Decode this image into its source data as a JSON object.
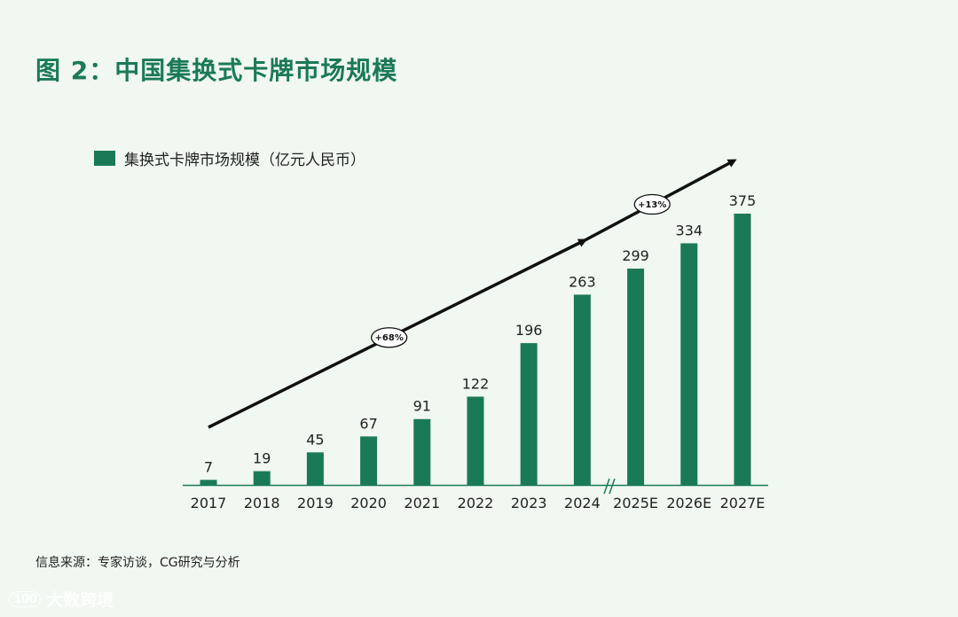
{
  "header": {
    "title": "图 2：中国集换式卡牌市场规模"
  },
  "footer": {
    "source": "信息来源：专家访谈，CG研究与分析"
  },
  "watermark": {
    "logo": "100",
    "text": "大数跨境"
  },
  "colors": {
    "bar": "#1a7a57",
    "title": "#1a7a57",
    "background": "#f1f7f1"
  },
  "chart_data": {
    "type": "bar",
    "categories": [
      "2017",
      "2018",
      "2019",
      "2020",
      "2021",
      "2022",
      "2023",
      "2024",
      "2025E",
      "2026E",
      "2027E"
    ],
    "series": [
      {
        "name": "集换式卡牌市场规模（亿元人民币）",
        "values": [
          7,
          19,
          45,
          67,
          91,
          122,
          196,
          263,
          299,
          334,
          375
        ]
      }
    ],
    "ylim": [
      0,
      375
    ],
    "legend_position": "top-left",
    "annotations": [
      {
        "text": "+68%",
        "from": "2017",
        "to": "2024"
      },
      {
        "text": "+13%",
        "from": "2024",
        "to": "2027E"
      }
    ],
    "axis_break_after": "2024",
    "grid": false
  }
}
